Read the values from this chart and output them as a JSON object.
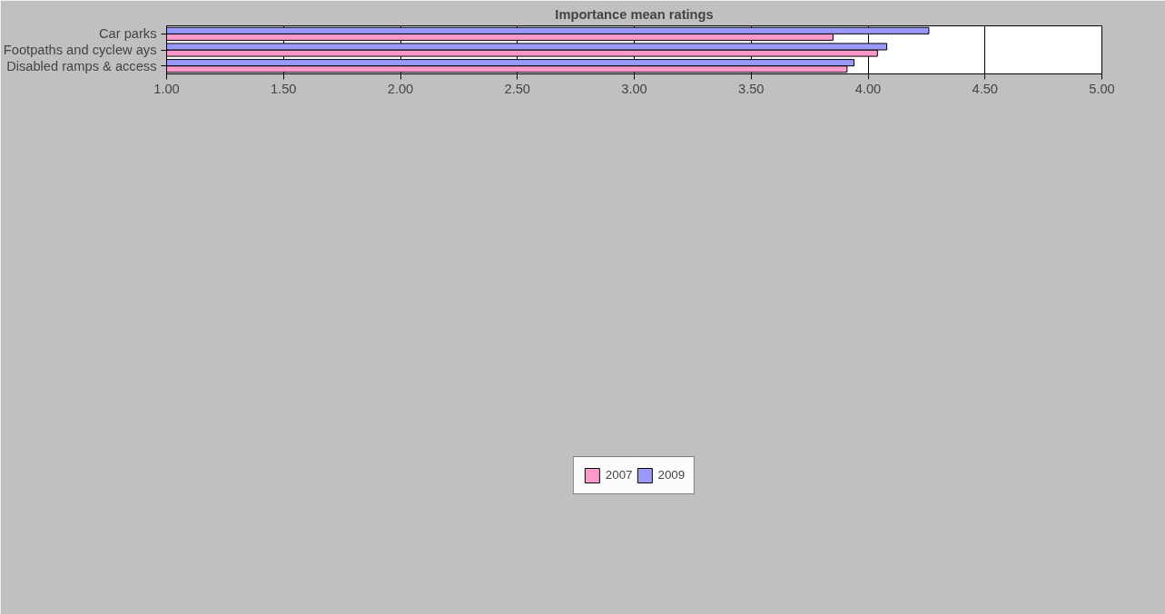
{
  "chart_data": {
    "type": "bar",
    "orientation": "horizontal",
    "title": "Importance mean ratings",
    "categories": [
      "Car parks",
      "Footpaths and cyclew ays",
      "Disabled ramps & access"
    ],
    "series": [
      {
        "name": "2007",
        "color": "#ff99cc",
        "values": [
          3.85,
          4.04,
          3.91
        ]
      },
      {
        "name": "2009",
        "color": "#9999ff",
        "values": [
          4.26,
          4.08,
          3.94
        ]
      }
    ],
    "xlim": [
      1,
      5
    ],
    "xticks": [
      {
        "value": 1,
        "label": "1.00"
      },
      {
        "value": 1.5,
        "label": "1.50"
      },
      {
        "value": 2,
        "label": "2.00"
      },
      {
        "value": 2.5,
        "label": "2.50"
      },
      {
        "value": 3,
        "label": "3.00"
      },
      {
        "value": 3.5,
        "label": "3.50"
      },
      {
        "value": 4,
        "label": "4.00"
      },
      {
        "value": 4.5,
        "label": "4.50"
      },
      {
        "value": 5,
        "label": "5.00"
      }
    ],
    "grid": "x",
    "legend": "bottom"
  }
}
